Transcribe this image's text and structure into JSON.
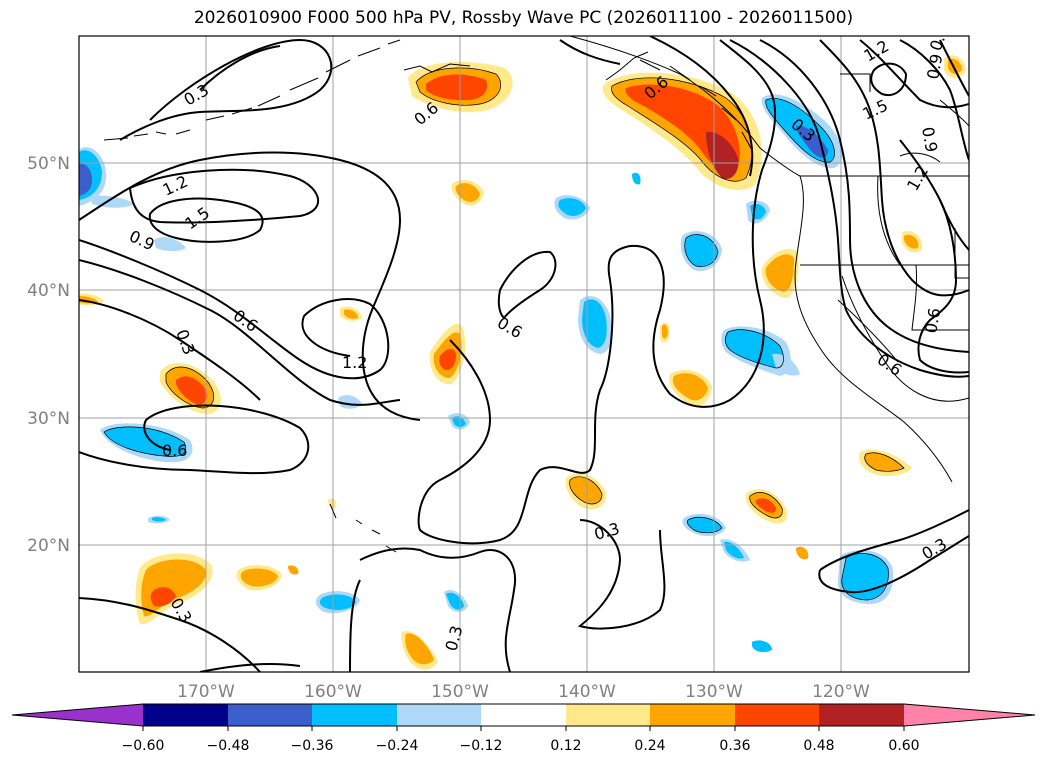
{
  "title": "2026010900 F000 500 hPa PV, Rossby Wave PC (2026011100 - 2026011500)",
  "lat_labels": [
    "50°N",
    "40°N",
    "30°N",
    "20°N"
  ],
  "lon_labels": [
    "170°W",
    "160°W",
    "150°W",
    "140°W",
    "130°W",
    "120°W"
  ],
  "contour_labels": [
    "0.3",
    "0.6",
    "1.2",
    "1.5",
    "0.9",
    "0.6",
    "1.2",
    "0.3",
    "0.6",
    "0.6",
    "0.3",
    "0.3",
    "0.3",
    "0.3",
    "0.6",
    "0.9",
    "1.2",
    "1.5",
    "1.2",
    "0.9",
    "0.3",
    "0.6",
    "0.6",
    "0.6"
  ],
  "colorbar": {
    "ticks": [
      "−0.60",
      "−0.48",
      "−0.36",
      "−0.24",
      "−0.12",
      "0.12",
      "0.24",
      "0.36",
      "0.48",
      "0.60"
    ],
    "colors": [
      "#9932cc",
      "#00008b",
      "#3a5fcd",
      "#00bfff",
      "#add8f7",
      "#ffffff",
      "#ffe98a",
      "#ffa500",
      "#ff4500",
      "#b22222",
      "#ff82ab"
    ]
  }
}
